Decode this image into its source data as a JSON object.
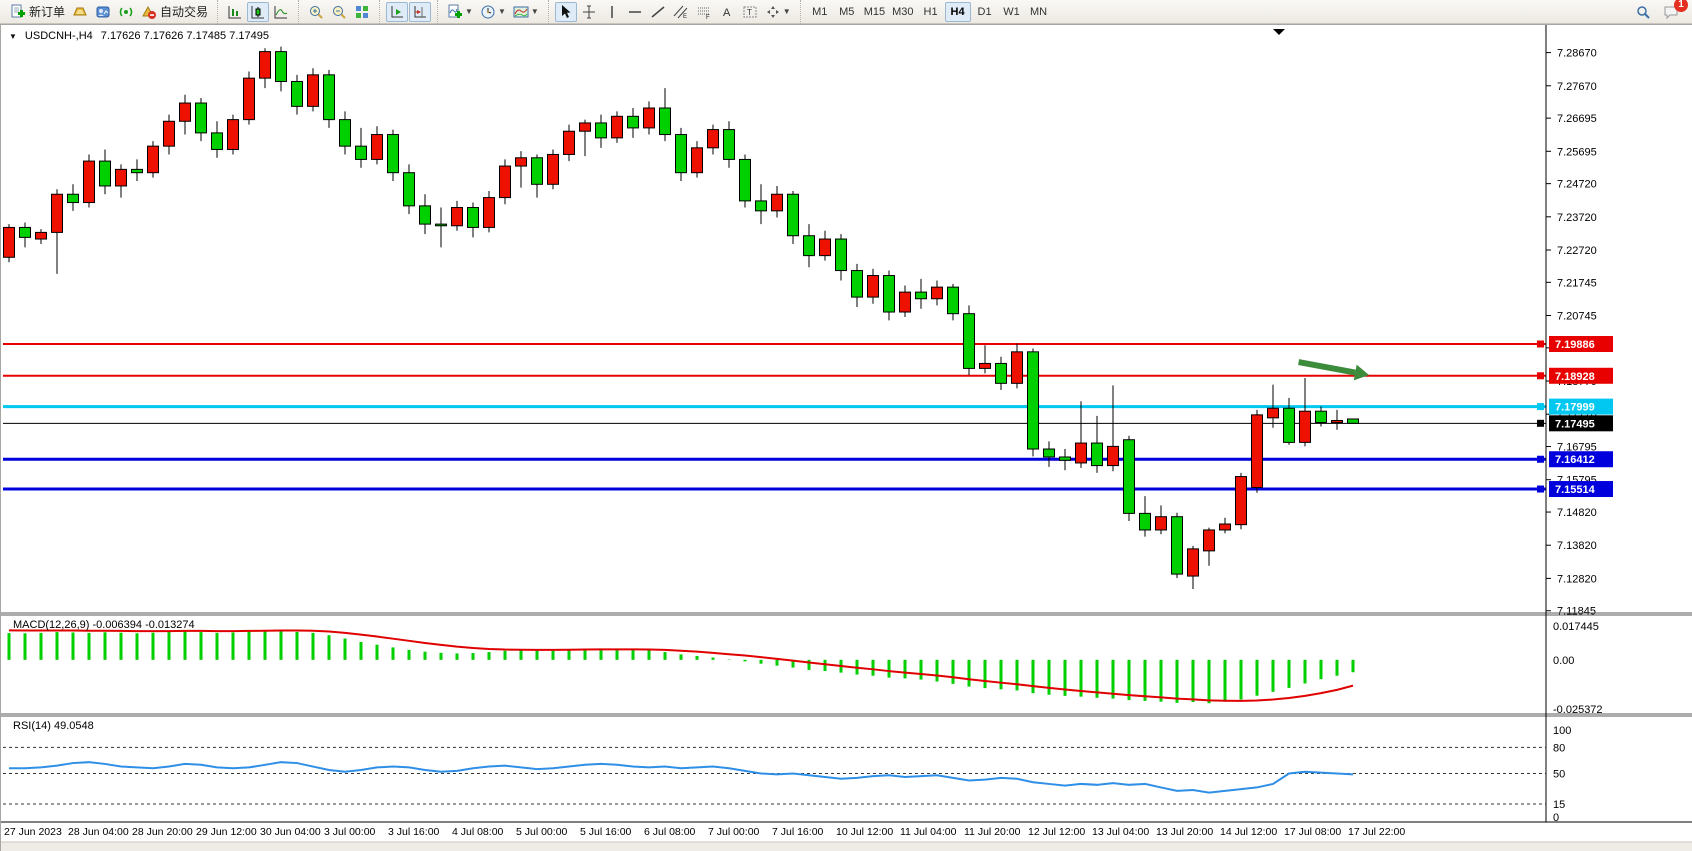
{
  "toolbar": {
    "new_order_label": "新订单",
    "auto_trading_label": "自动交易",
    "timeframes": [
      "M1",
      "M5",
      "M15",
      "M30",
      "H1",
      "H4",
      "D1",
      "W1",
      "MN"
    ],
    "active_timeframe": "H4",
    "notification_count": "1",
    "icon_names": [
      "new-order-icon",
      "market-watch-icon",
      "terminal-icon",
      "signals-icon",
      "auto-trading-icon",
      "bar-chart-icon",
      "candlestick-chart-icon",
      "line-chart-icon",
      "zoom-in-icon",
      "zoom-out-icon",
      "tile-windows-icon",
      "auto-scroll-icon",
      "chart-shift-icon",
      "add-indicator-icon",
      "periods-clock-icon",
      "template-icon",
      "cursor-icon",
      "crosshair-icon",
      "vertical-line-icon",
      "horizontal-line-icon",
      "trendline-icon",
      "equidistant-channel-icon",
      "fibonacci-icon",
      "text-icon",
      "text-label-icon",
      "arrows-icon",
      "search-icon",
      "chat-icon"
    ]
  },
  "chart": {
    "symbol_title": "USDCNH-,H4",
    "ohlc_text": "7.17626 7.17626 7.17485 7.17495",
    "macd_label": "MACD(12,26,9) -0.006394 -0.013274",
    "rsi_label": "RSI(14) 49.0548"
  },
  "chart_data": {
    "type": "candlestick",
    "symbol": "USDCNH-",
    "period": "H4",
    "style": {
      "up_color": "#ee1100",
      "down_color": "#00cf00",
      "outline": "#000000",
      "macd_hist": "#00cf00",
      "macd_signal": "#e00000",
      "rsi_line": "#2f8fe6",
      "hline_red": "#e80000",
      "hline_cyan": "#00c8f0",
      "hline_blue": "#0000dd",
      "bid_color": "#000000"
    },
    "price_axis": {
      "min": 7.11807,
      "max": 7.29442,
      "ticks": [
        "7.28670",
        "7.27670",
        "7.26695",
        "7.25695",
        "7.24720",
        "7.23720",
        "7.22720",
        "7.21745",
        "7.20745",
        "7.19770",
        "7.18770",
        "7.17770",
        "7.16795",
        "7.15795",
        "7.14820",
        "7.13820",
        "7.12820",
        "7.11845"
      ]
    },
    "time_labels": [
      "27 Jun 2023",
      "28 Jun 04:00",
      "28 Jun 20:00",
      "29 Jun 12:00",
      "30 Jun 04:00",
      "3 Jul 00:00",
      "3 Jul 16:00",
      "4 Jul 08:00",
      "5 Jul 00:00",
      "5 Jul 16:00",
      "6 Jul 08:00",
      "7 Jul 00:00",
      "7 Jul 16:00",
      "10 Jul 12:00",
      "11 Jul 04:00",
      "11 Jul 20:00",
      "12 Jul 12:00",
      "13 Jul 04:00",
      "13 Jul 20:00",
      "14 Jul 12:00",
      "17 Jul 08:00",
      "17 Jul 22:00"
    ],
    "candles": [
      [
        7.225,
        7.235,
        7.2235,
        7.234
      ],
      [
        7.234,
        7.2355,
        7.228,
        7.231
      ],
      [
        7.2305,
        7.2335,
        7.229,
        7.2325
      ],
      [
        7.2325,
        7.2455,
        7.22,
        7.244
      ],
      [
        7.244,
        7.247,
        7.239,
        7.2415
      ],
      [
        7.2415,
        7.256,
        7.24,
        7.254
      ],
      [
        7.254,
        7.2575,
        7.244,
        7.2465
      ],
      [
        7.2465,
        7.253,
        7.243,
        7.2515
      ],
      [
        7.2515,
        7.2545,
        7.248,
        7.2505
      ],
      [
        7.2505,
        7.26,
        7.249,
        7.2585
      ],
      [
        7.2585,
        7.268,
        7.256,
        7.266
      ],
      [
        7.266,
        7.274,
        7.262,
        7.2715
      ],
      [
        7.2715,
        7.273,
        7.26,
        7.2625
      ],
      [
        7.2625,
        7.266,
        7.255,
        7.2575
      ],
      [
        7.2575,
        7.268,
        7.256,
        7.2665
      ],
      [
        7.2665,
        7.281,
        7.265,
        7.279
      ],
      [
        7.279,
        7.288,
        7.276,
        7.287
      ],
      [
        7.287,
        7.2885,
        7.275,
        7.278
      ],
      [
        7.278,
        7.28,
        7.268,
        7.2705
      ],
      [
        7.2705,
        7.282,
        7.269,
        7.28
      ],
      [
        7.28,
        7.2815,
        7.264,
        7.2665
      ],
      [
        7.2665,
        7.269,
        7.256,
        7.2585
      ],
      [
        7.2585,
        7.264,
        7.252,
        7.2545
      ],
      [
        7.2545,
        7.2645,
        7.253,
        7.262
      ],
      [
        7.262,
        7.2635,
        7.248,
        7.2505
      ],
      [
        7.2505,
        7.253,
        7.238,
        7.2405
      ],
      [
        7.2405,
        7.244,
        7.232,
        7.235
      ],
      [
        7.235,
        7.24,
        7.228,
        7.2345
      ],
      [
        7.2345,
        7.242,
        7.233,
        7.24
      ],
      [
        7.24,
        7.2415,
        7.231,
        7.234
      ],
      [
        7.234,
        7.245,
        7.2325,
        7.243
      ],
      [
        7.243,
        7.2545,
        7.241,
        7.2525
      ],
      [
        7.2525,
        7.257,
        7.246,
        7.255
      ],
      [
        7.255,
        7.256,
        7.243,
        7.247
      ],
      [
        7.247,
        7.2575,
        7.2455,
        7.256
      ],
      [
        7.256,
        7.265,
        7.254,
        7.263
      ],
      [
        7.263,
        7.2665,
        7.2555,
        7.2655
      ],
      [
        7.2655,
        7.268,
        7.258,
        7.261
      ],
      [
        7.261,
        7.269,
        7.2595,
        7.2675
      ],
      [
        7.2675,
        7.27,
        7.261,
        7.264
      ],
      [
        7.264,
        7.272,
        7.262,
        7.27
      ],
      [
        7.27,
        7.276,
        7.26,
        7.262
      ],
      [
        7.262,
        7.264,
        7.248,
        7.2505
      ],
      [
        7.2505,
        7.26,
        7.249,
        7.258
      ],
      [
        7.258,
        7.265,
        7.256,
        7.2635
      ],
      [
        7.2635,
        7.266,
        7.252,
        7.2545
      ],
      [
        7.2545,
        7.256,
        7.24,
        7.242
      ],
      [
        7.242,
        7.247,
        7.235,
        7.239
      ],
      [
        7.239,
        7.2465,
        7.237,
        7.244
      ],
      [
        7.244,
        7.245,
        7.229,
        7.2315
      ],
      [
        7.2315,
        7.235,
        7.222,
        7.2255
      ],
      [
        7.2255,
        7.233,
        7.224,
        7.2305
      ],
      [
        7.2305,
        7.232,
        7.218,
        7.221
      ],
      [
        7.221,
        7.223,
        7.21,
        7.213
      ],
      [
        7.213,
        7.2215,
        7.211,
        7.2195
      ],
      [
        7.2195,
        7.221,
        7.206,
        7.2085
      ],
      [
        7.2085,
        7.2165,
        7.207,
        7.2145
      ],
      [
        7.2145,
        7.2185,
        7.2095,
        7.2125
      ],
      [
        7.2125,
        7.218,
        7.2105,
        7.216
      ],
      [
        7.216,
        7.217,
        7.206,
        7.208
      ],
      [
        7.208,
        7.2105,
        7.1895,
        7.1915
      ],
      [
        7.1915,
        7.1985,
        7.19,
        7.193
      ],
      [
        7.193,
        7.195,
        7.185,
        7.187
      ],
      [
        7.187,
        7.199,
        7.1855,
        7.1965
      ],
      [
        7.1965,
        7.1975,
        7.165,
        7.1672
      ],
      [
        7.1672,
        7.1695,
        7.1618,
        7.1648
      ],
      [
        7.1648,
        7.1672,
        7.1608,
        7.1638
      ],
      [
        7.163,
        7.1816,
        7.1615,
        7.169
      ],
      [
        7.169,
        7.1772,
        7.16,
        7.1622
      ],
      [
        7.1622,
        7.1864,
        7.1605,
        7.168
      ],
      [
        7.17,
        7.1712,
        7.1455,
        7.1478
      ],
      [
        7.1478,
        7.153,
        7.1408,
        7.1428
      ],
      [
        7.1428,
        7.1502,
        7.1415,
        7.1468
      ],
      [
        7.1468,
        7.148,
        7.1283,
        7.1295
      ],
      [
        7.1289,
        7.138,
        7.125,
        7.1371
      ],
      [
        7.1365,
        7.1435,
        7.132,
        7.1428
      ],
      [
        7.1428,
        7.1465,
        7.1418,
        7.1446
      ],
      [
        7.1444,
        7.16,
        7.143,
        7.1589
      ],
      [
        7.1556,
        7.179,
        7.154,
        7.1775
      ],
      [
        7.1766,
        7.1866,
        7.1736,
        7.1795
      ],
      [
        7.1795,
        7.1826,
        7.1685,
        7.1692
      ],
      [
        7.1692,
        7.1886,
        7.168,
        7.1786
      ],
      [
        7.1786,
        7.18,
        7.174,
        7.1752
      ],
      [
        7.1752,
        7.179,
        7.173,
        7.1758
      ],
      [
        7.17626,
        7.17626,
        7.17485,
        7.17495
      ]
    ],
    "hlines": [
      {
        "price": 7.19886,
        "label": "7.19886",
        "color": "#e80000",
        "width": 2
      },
      {
        "price": 7.18928,
        "label": "7.18928",
        "color": "#e80000",
        "width": 2
      },
      {
        "price": 7.17999,
        "label": "7.17999",
        "color": "#00c8f0",
        "width": 3
      },
      {
        "price": 7.16412,
        "label": "7.16412",
        "color": "#0000dd",
        "width": 3
      },
      {
        "price": 7.15514,
        "label": "7.15514",
        "color": "#0000dd",
        "width": 3
      }
    ],
    "current_price": {
      "label": "7.17495",
      "price": 7.17495,
      "color": "#000000"
    },
    "annotations": [
      {
        "type": "arrow",
        "color": "#3c8c3c",
        "from_bar": 80.6,
        "from_price": 7.1934,
        "to_bar": 85.0,
        "to_price": 7.1895
      }
    ],
    "macd": {
      "label": "MACD(12,26,9) -0.006394 -0.013274",
      "axis_max": 0.017445,
      "axis_min": -0.025372,
      "axis_ticks": [
        "0.017445",
        "0.00",
        "-0.025372"
      ],
      "hist": [
        0.0138,
        0.0137,
        0.0139,
        0.0143,
        0.0141,
        0.0139,
        0.0142,
        0.014,
        0.0137,
        0.014,
        0.0143,
        0.0146,
        0.0143,
        0.0139,
        0.0141,
        0.0146,
        0.0151,
        0.0149,
        0.0144,
        0.0139,
        0.0127,
        0.011,
        0.0092,
        0.0078,
        0.0064,
        0.0051,
        0.0042,
        0.0036,
        0.0033,
        0.0035,
        0.004,
        0.0047,
        0.0051,
        0.0049,
        0.0052,
        0.0056,
        0.0058,
        0.0056,
        0.0057,
        0.0053,
        0.0049,
        0.004,
        0.0028,
        0.002,
        0.0012,
        0.0002,
        -0.0008,
        -0.002,
        -0.003,
        -0.004,
        -0.0052,
        -0.0058,
        -0.0066,
        -0.0076,
        -0.0082,
        -0.0092,
        -0.0096,
        -0.0102,
        -0.0112,
        -0.0124,
        -0.0138,
        -0.0146,
        -0.0152,
        -0.0158,
        -0.0172,
        -0.018,
        -0.0186,
        -0.019,
        -0.0196,
        -0.02,
        -0.0208,
        -0.0212,
        -0.0216,
        -0.0222,
        -0.0218,
        -0.0224,
        -0.0216,
        -0.0205,
        -0.0185,
        -0.0165,
        -0.0145,
        -0.0122,
        -0.01,
        -0.0082,
        -0.0064
      ],
      "signal": [
        0.0152,
        0.0151,
        0.0151,
        0.0151,
        0.0151,
        0.015,
        0.015,
        0.0149,
        0.0148,
        0.0148,
        0.0148,
        0.0149,
        0.0149,
        0.0148,
        0.0148,
        0.0149,
        0.015,
        0.0151,
        0.0151,
        0.015,
        0.0146,
        0.0139,
        0.013,
        0.012,
        0.0109,
        0.0098,
        0.0087,
        0.0077,
        0.0068,
        0.0061,
        0.0056,
        0.0053,
        0.0052,
        0.0051,
        0.0051,
        0.0052,
        0.0053,
        0.0054,
        0.0054,
        0.0054,
        0.0053,
        0.0051,
        0.0047,
        0.0042,
        0.0036,
        0.0029,
        0.0022,
        0.0014,
        0.0005,
        -0.0004,
        -0.0014,
        -0.0023,
        -0.0032,
        -0.0041,
        -0.0049,
        -0.0058,
        -0.0066,
        -0.0073,
        -0.0081,
        -0.009,
        -0.01,
        -0.0109,
        -0.0118,
        -0.0126,
        -0.0136,
        -0.0145,
        -0.0153,
        -0.0161,
        -0.0168,
        -0.0175,
        -0.0182,
        -0.0188,
        -0.0194,
        -0.02,
        -0.0204,
        -0.0209,
        -0.0211,
        -0.0212,
        -0.021,
        -0.0205,
        -0.0197,
        -0.0186,
        -0.0172,
        -0.0155,
        -0.0133
      ]
    },
    "rsi": {
      "label": "RSI(14) 49.0548",
      "levels": [
        80,
        50,
        15
      ],
      "axis_ticks": [
        "100",
        "80",
        "50",
        "15",
        "0"
      ],
      "values": [
        56,
        56,
        57,
        59,
        62,
        63,
        61,
        58,
        57,
        56,
        58,
        61,
        60,
        57,
        56,
        57,
        60,
        63,
        62,
        58,
        54,
        52,
        54,
        57,
        58,
        57,
        54,
        52,
        53,
        56,
        58,
        59,
        57,
        55,
        56,
        58,
        60,
        61,
        60,
        58,
        57,
        58,
        56,
        57,
        58,
        56,
        53,
        50,
        49,
        50,
        48,
        46,
        44,
        45,
        47,
        48,
        46,
        47,
        48,
        45,
        42,
        43,
        45,
        44,
        40,
        38,
        36,
        38,
        37,
        39,
        37,
        38,
        34,
        30,
        31,
        28,
        30,
        32,
        34,
        38,
        50,
        52,
        51,
        50,
        49
      ]
    }
  }
}
